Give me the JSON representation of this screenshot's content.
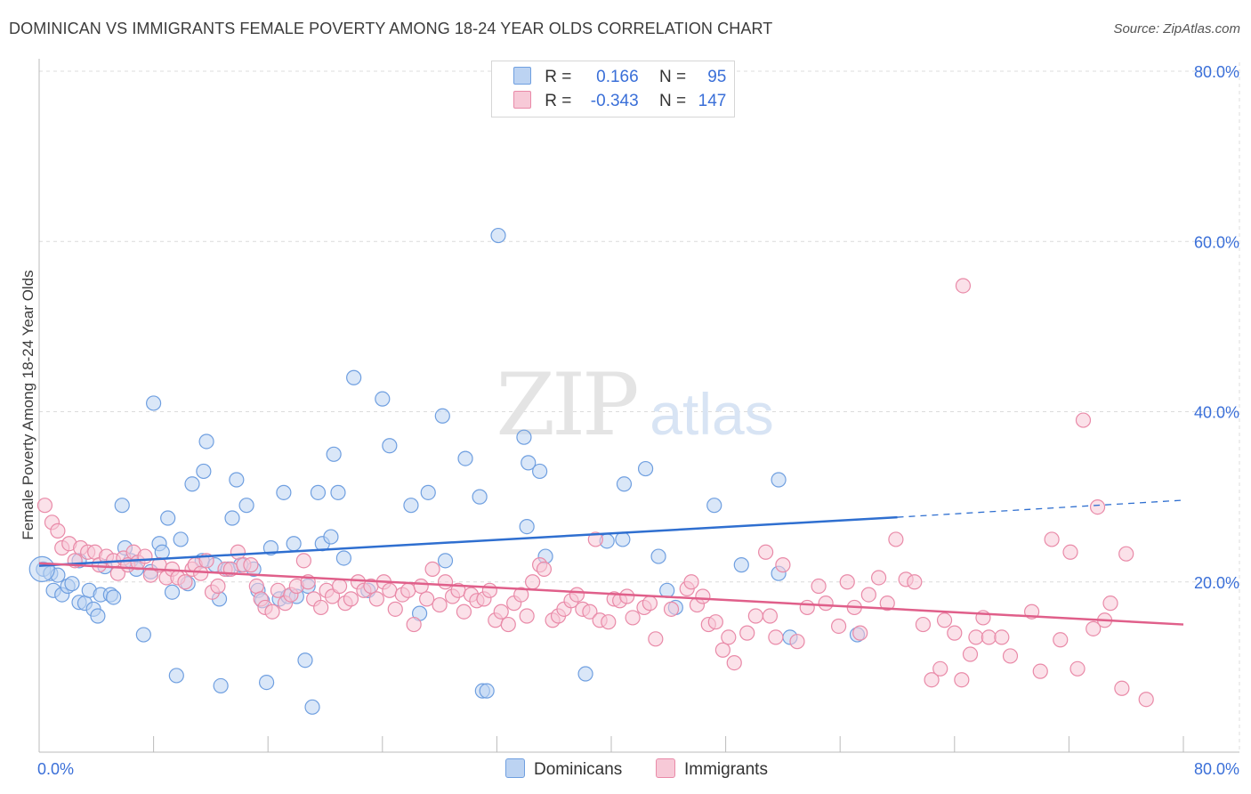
{
  "header": {
    "title": "DOMINICAN VS IMMIGRANTS FEMALE POVERTY AMONG 18-24 YEAR OLDS CORRELATION CHART",
    "source": "Source: ZipAtlas.com"
  },
  "watermark": {
    "zip": "ZIP",
    "atlas": "atlas"
  },
  "legend": {
    "rows": [
      {
        "r_label": "R =",
        "r_value": "0.166",
        "n_label": "N =",
        "n_value": "95",
        "color": "#a9c6ef"
      },
      {
        "r_label": "R =",
        "r_value": "-0.343",
        "n_label": "N =",
        "n_value": "147",
        "color": "#f5b8cb"
      }
    ]
  },
  "bottom_legend": [
    {
      "label": "Dominicans",
      "color": "#a9c6ef"
    },
    {
      "label": "Immigrants",
      "color": "#f5b8cb"
    }
  ],
  "chart_data": {
    "type": "scatter",
    "title": "DOMINICAN VS IMMIGRANTS FEMALE POVERTY AMONG 18-24 YEAR OLDS CORRELATION CHART",
    "xlabel": "",
    "ylabel": "Female Poverty Among 18-24 Year Olds",
    "xlim": [
      0,
      80
    ],
    "ylim": [
      0,
      80
    ],
    "x_tick_labels": [
      "0.0%",
      "80.0%"
    ],
    "y_tick_labels": [
      "20.0%",
      "40.0%",
      "60.0%",
      "80.0%"
    ],
    "y_ticks": [
      20,
      40,
      60,
      80
    ],
    "grid": true,
    "legend_position": "top-center",
    "series": [
      {
        "name": "Dominicans",
        "color": "#6f9fe0",
        "fill": "#bcd3f2",
        "trend": {
          "x": [
            0,
            60
          ],
          "y": [
            21.9,
            27.6
          ],
          "dashed_to": [
            80,
            29.6
          ],
          "color": "#2f6fd0"
        },
        "points": [
          [
            0.3,
            21.5
          ],
          [
            0.8,
            21.0
          ],
          [
            1.0,
            19.0
          ],
          [
            1.3,
            20.8
          ],
          [
            1.6,
            18.5
          ],
          [
            2.0,
            19.5
          ],
          [
            2.3,
            19.8
          ],
          [
            2.8,
            22.5
          ],
          [
            2.8,
            17.6
          ],
          [
            3.2,
            17.5
          ],
          [
            3.5,
            19.0
          ],
          [
            3.8,
            16.8
          ],
          [
            4.1,
            16.0
          ],
          [
            4.3,
            18.5
          ],
          [
            4.6,
            21.8
          ],
          [
            5.0,
            18.5
          ],
          [
            5.2,
            18.2
          ],
          [
            5.8,
            29.0
          ],
          [
            6.0,
            24.0
          ],
          [
            6.4,
            22.5
          ],
          [
            6.8,
            21.5
          ],
          [
            7.3,
            13.8
          ],
          [
            7.8,
            21.2
          ],
          [
            8.0,
            41.0
          ],
          [
            8.4,
            24.5
          ],
          [
            8.6,
            23.5
          ],
          [
            9.0,
            27.5
          ],
          [
            9.3,
            18.8
          ],
          [
            9.6,
            9.0
          ],
          [
            9.9,
            25.0
          ],
          [
            10.4,
            19.8
          ],
          [
            10.7,
            31.5
          ],
          [
            11.4,
            22.5
          ],
          [
            11.5,
            33.0
          ],
          [
            11.7,
            36.5
          ],
          [
            12.3,
            22.0
          ],
          [
            12.6,
            18.0
          ],
          [
            12.7,
            7.8
          ],
          [
            13.2,
            21.5
          ],
          [
            13.5,
            27.5
          ],
          [
            13.8,
            32.0
          ],
          [
            14.1,
            22.0
          ],
          [
            14.5,
            29.0
          ],
          [
            15.0,
            21.5
          ],
          [
            15.3,
            19.0
          ],
          [
            15.6,
            17.8
          ],
          [
            15.9,
            8.2
          ],
          [
            16.2,
            24.0
          ],
          [
            16.8,
            18.0
          ],
          [
            17.1,
            30.5
          ],
          [
            17.4,
            18.3
          ],
          [
            17.8,
            24.5
          ],
          [
            18.0,
            18.3
          ],
          [
            18.6,
            10.8
          ],
          [
            18.8,
            19.5
          ],
          [
            19.1,
            5.3
          ],
          [
            19.5,
            30.5
          ],
          [
            19.8,
            24.5
          ],
          [
            20.4,
            25.3
          ],
          [
            20.6,
            35.0
          ],
          [
            20.9,
            30.5
          ],
          [
            21.3,
            22.8
          ],
          [
            22.0,
            44.0
          ],
          [
            23.0,
            19.0
          ],
          [
            24.0,
            41.5
          ],
          [
            24.5,
            36.0
          ],
          [
            26.0,
            29.0
          ],
          [
            26.6,
            16.3
          ],
          [
            27.2,
            30.5
          ],
          [
            28.2,
            39.5
          ],
          [
            28.4,
            22.5
          ],
          [
            29.8,
            34.5
          ],
          [
            30.8,
            30.0
          ],
          [
            31.0,
            7.2
          ],
          [
            31.3,
            7.2
          ],
          [
            32.1,
            60.7
          ],
          [
            33.9,
            37.0
          ],
          [
            34.1,
            26.5
          ],
          [
            34.2,
            34.0
          ],
          [
            35.0,
            33.0
          ],
          [
            35.4,
            23.0
          ],
          [
            38.2,
            9.2
          ],
          [
            39.7,
            24.8
          ],
          [
            40.8,
            25.0
          ],
          [
            40.9,
            31.5
          ],
          [
            42.4,
            33.3
          ],
          [
            43.3,
            23.0
          ],
          [
            43.9,
            19.0
          ],
          [
            44.5,
            17.0
          ],
          [
            47.2,
            29.0
          ],
          [
            49.1,
            22.0
          ],
          [
            51.7,
            21.0
          ],
          [
            51.7,
            32.0
          ],
          [
            52.5,
            13.5
          ],
          [
            57.2,
            13.8
          ]
        ]
      },
      {
        "name": "Immigrants",
        "color": "#e98aa8",
        "fill": "#f7c9d7",
        "trend": {
          "x": [
            0,
            80
          ],
          "y": [
            22.2,
            15.0
          ],
          "color": "#e05f8a"
        },
        "points": [
          [
            0.4,
            29.0
          ],
          [
            0.9,
            27.0
          ],
          [
            1.3,
            26.0
          ],
          [
            1.6,
            24.0
          ],
          [
            2.1,
            24.5
          ],
          [
            2.5,
            22.5
          ],
          [
            2.9,
            24.0
          ],
          [
            3.4,
            23.5
          ],
          [
            3.9,
            23.5
          ],
          [
            4.2,
            22.0
          ],
          [
            4.7,
            23.0
          ],
          [
            5.2,
            22.5
          ],
          [
            5.5,
            21.0
          ],
          [
            5.9,
            22.8
          ],
          [
            6.2,
            22.0
          ],
          [
            6.6,
            23.5
          ],
          [
            6.9,
            22.3
          ],
          [
            7.4,
            23.0
          ],
          [
            7.8,
            20.8
          ],
          [
            8.4,
            22.0
          ],
          [
            8.9,
            20.5
          ],
          [
            9.3,
            21.5
          ],
          [
            9.7,
            20.5
          ],
          [
            10.2,
            20.0
          ],
          [
            10.7,
            21.5
          ],
          [
            10.9,
            22.0
          ],
          [
            11.3,
            21.0
          ],
          [
            11.7,
            22.5
          ],
          [
            12.1,
            18.8
          ],
          [
            12.5,
            19.5
          ],
          [
            13.0,
            21.5
          ],
          [
            13.4,
            21.5
          ],
          [
            13.9,
            23.5
          ],
          [
            14.3,
            22.0
          ],
          [
            14.8,
            22.0
          ],
          [
            15.2,
            19.5
          ],
          [
            15.5,
            18.0
          ],
          [
            15.8,
            17.0
          ],
          [
            16.3,
            16.5
          ],
          [
            16.7,
            19.0
          ],
          [
            17.2,
            17.5
          ],
          [
            17.6,
            18.5
          ],
          [
            18.0,
            19.5
          ],
          [
            18.5,
            22.5
          ],
          [
            18.8,
            20.0
          ],
          [
            19.2,
            18.0
          ],
          [
            19.7,
            17.0
          ],
          [
            20.1,
            19.0
          ],
          [
            20.5,
            18.3
          ],
          [
            21.0,
            19.5
          ],
          [
            21.4,
            17.5
          ],
          [
            21.8,
            18.0
          ],
          [
            22.3,
            20.0
          ],
          [
            22.7,
            19.0
          ],
          [
            23.2,
            19.5
          ],
          [
            23.6,
            18.0
          ],
          [
            24.1,
            20.0
          ],
          [
            24.5,
            19.0
          ],
          [
            24.9,
            16.8
          ],
          [
            25.4,
            18.5
          ],
          [
            25.8,
            19.0
          ],
          [
            26.2,
            15.0
          ],
          [
            26.7,
            19.5
          ],
          [
            27.1,
            18.0
          ],
          [
            27.5,
            21.5
          ],
          [
            28.0,
            17.3
          ],
          [
            28.4,
            20.0
          ],
          [
            28.9,
            18.3
          ],
          [
            29.3,
            19.0
          ],
          [
            29.7,
            16.5
          ],
          [
            30.2,
            18.5
          ],
          [
            30.6,
            17.8
          ],
          [
            31.1,
            18.0
          ],
          [
            31.5,
            19.0
          ],
          [
            31.9,
            15.5
          ],
          [
            32.3,
            16.5
          ],
          [
            32.8,
            15.0
          ],
          [
            33.2,
            17.5
          ],
          [
            33.7,
            18.5
          ],
          [
            34.1,
            16.0
          ],
          [
            34.5,
            20.0
          ],
          [
            35.0,
            22.0
          ],
          [
            35.3,
            21.5
          ],
          [
            35.9,
            15.5
          ],
          [
            36.3,
            16.0
          ],
          [
            36.7,
            16.8
          ],
          [
            37.2,
            17.8
          ],
          [
            37.6,
            18.5
          ],
          [
            38.0,
            16.8
          ],
          [
            38.5,
            16.5
          ],
          [
            38.9,
            25.0
          ],
          [
            39.2,
            15.5
          ],
          [
            39.8,
            15.3
          ],
          [
            40.2,
            18.0
          ],
          [
            40.6,
            17.8
          ],
          [
            41.1,
            18.3
          ],
          [
            41.5,
            15.8
          ],
          [
            42.3,
            17.0
          ],
          [
            42.7,
            17.5
          ],
          [
            43.1,
            13.3
          ],
          [
            44.2,
            16.8
          ],
          [
            45.3,
            19.2
          ],
          [
            45.6,
            20.0
          ],
          [
            46.0,
            17.3
          ],
          [
            46.4,
            18.3
          ],
          [
            46.8,
            15.0
          ],
          [
            47.3,
            15.3
          ],
          [
            47.8,
            12.0
          ],
          [
            48.2,
            13.5
          ],
          [
            48.6,
            10.5
          ],
          [
            49.5,
            14.0
          ],
          [
            50.1,
            16.0
          ],
          [
            50.8,
            23.5
          ],
          [
            51.1,
            16.0
          ],
          [
            51.5,
            13.5
          ],
          [
            52.0,
            22.0
          ],
          [
            53.0,
            13.0
          ],
          [
            53.7,
            17.0
          ],
          [
            54.5,
            19.5
          ],
          [
            55.0,
            17.5
          ],
          [
            55.9,
            14.8
          ],
          [
            56.5,
            20.0
          ],
          [
            57.0,
            17.0
          ],
          [
            57.4,
            14.0
          ],
          [
            58.0,
            18.5
          ],
          [
            58.7,
            20.5
          ],
          [
            59.3,
            17.5
          ],
          [
            59.9,
            25.0
          ],
          [
            60.6,
            20.3
          ],
          [
            61.2,
            20.0
          ],
          [
            61.8,
            15.0
          ],
          [
            62.4,
            8.5
          ],
          [
            63.0,
            9.8
          ],
          [
            63.3,
            15.5
          ],
          [
            64.0,
            14.0
          ],
          [
            64.5,
            8.5
          ],
          [
            65.1,
            11.5
          ],
          [
            65.5,
            13.5
          ],
          [
            66.0,
            15.8
          ],
          [
            66.4,
            13.5
          ],
          [
            67.3,
            13.5
          ],
          [
            67.9,
            11.3
          ],
          [
            69.4,
            16.5
          ],
          [
            70.0,
            9.5
          ],
          [
            70.8,
            25.0
          ],
          [
            71.4,
            13.2
          ],
          [
            72.1,
            23.5
          ],
          [
            72.6,
            9.8
          ],
          [
            73.0,
            39.0
          ],
          [
            73.7,
            14.5
          ],
          [
            74.5,
            15.5
          ],
          [
            74.9,
            17.5
          ],
          [
            75.7,
            7.5
          ],
          [
            76.0,
            23.3
          ],
          [
            77.4,
            6.2
          ],
          [
            64.6,
            54.8
          ],
          [
            74.0,
            28.8
          ]
        ]
      }
    ]
  }
}
